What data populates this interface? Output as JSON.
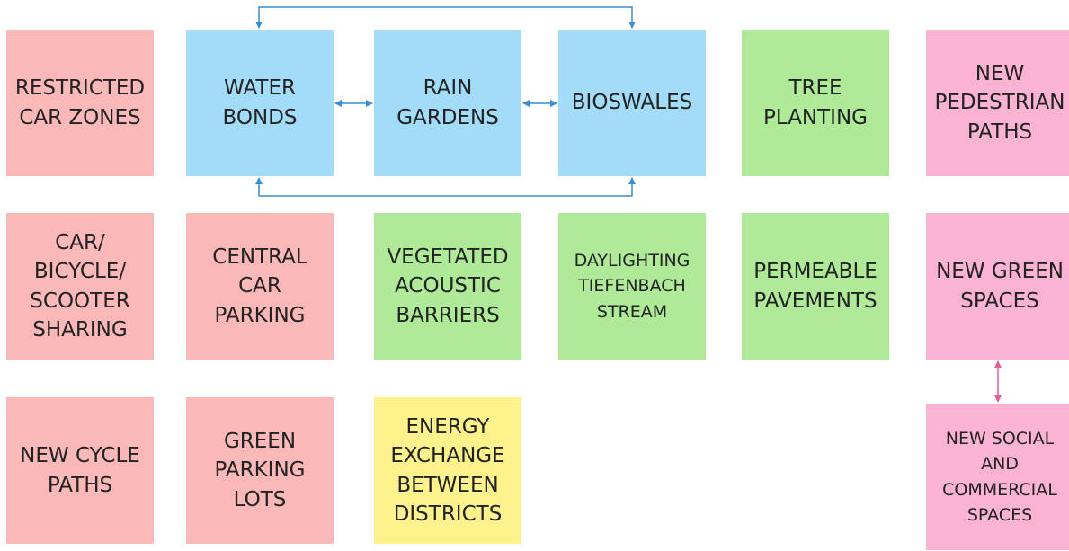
{
  "nodes": [
    {
      "lines": [
        "RESTRICTED",
        "CAR ZONES"
      ]
    },
    {
      "lines": [
        "WATER",
        "BONDS"
      ]
    },
    {
      "lines": [
        "RAIN",
        "GARDENS"
      ]
    },
    {
      "lines": [
        "BIOSWALES"
      ]
    },
    {
      "lines": [
        "TREE",
        "PLANTING"
      ]
    },
    {
      "lines": [
        "NEW",
        "PEDESTRIAN",
        "PATHS"
      ]
    },
    {
      "lines": [
        "CAR/",
        "BICYCLE/",
        "SCOOTER",
        "SHARING"
      ]
    },
    {
      "lines": [
        "CENTRAL",
        "CAR",
        "PARKING"
      ]
    },
    {
      "lines": [
        "VEGETATED",
        "ACOUSTIC",
        "BARRIERS"
      ]
    },
    {
      "lines": [
        "DAYLIGHTING",
        "TIEFENBACH",
        "STREAM"
      ]
    },
    {
      "lines": [
        "PERMEABLE",
        "PAVEMENTS"
      ]
    },
    {
      "lines": [
        "NEW GREEN",
        "SPACES"
      ]
    },
    {
      "lines": [
        "NEW CYCLE",
        "PATHS"
      ]
    },
    {
      "lines": [
        "GREEN",
        "PARKING",
        "LOTS"
      ]
    },
    {
      "lines": [
        "ENERGY",
        "EXCHANGE",
        "BETWEEN",
        "DISTRICTS"
      ]
    },
    {
      "lines": [
        "NEW SOCIAL",
        "AND",
        "COMMERCIAL",
        "SPACES"
      ]
    }
  ]
}
